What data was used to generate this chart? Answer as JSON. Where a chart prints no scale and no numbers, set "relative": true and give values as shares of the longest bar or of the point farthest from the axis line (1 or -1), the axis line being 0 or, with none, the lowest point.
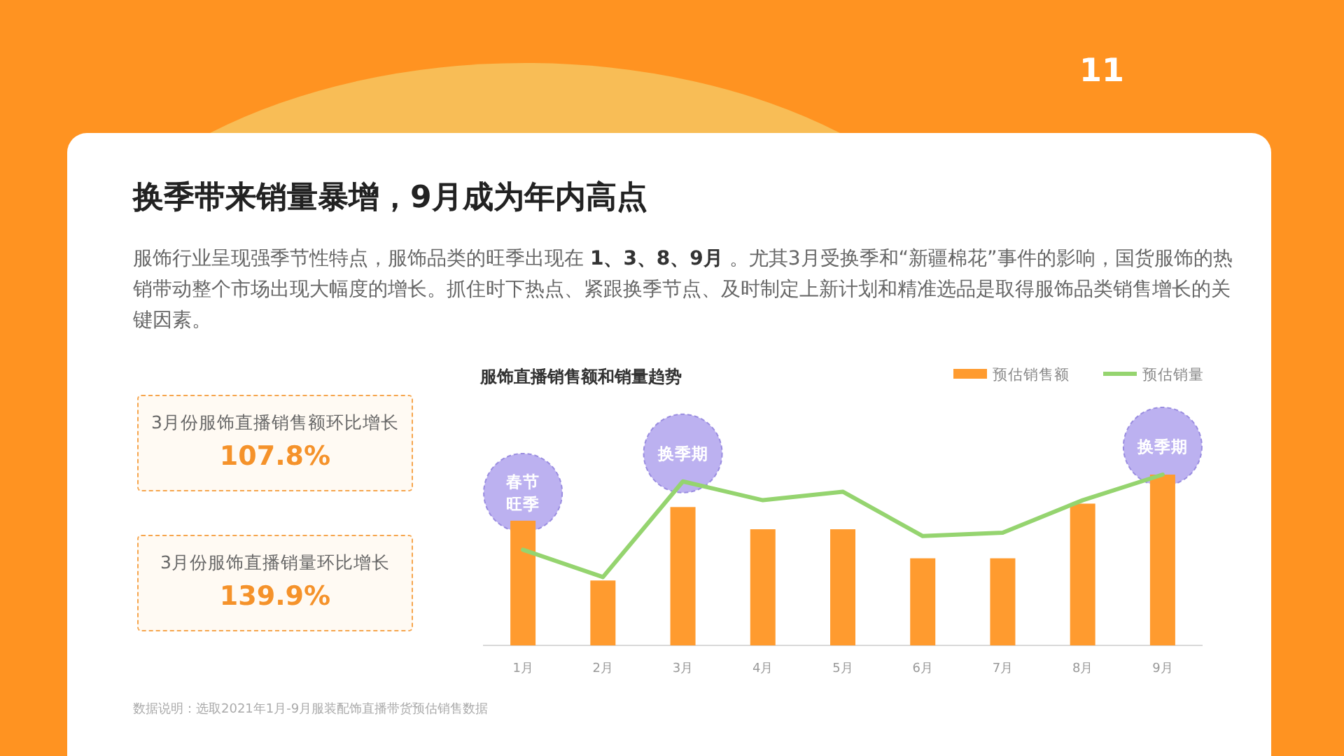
{
  "chart_data": [
    {
      "type": "other",
      "title": "换季带来销量暴增，9月成为年内高点",
      "subtitle": "服饰行业呈现强季节性特点，服饰品类的旺季出现在 **1、3、8、9月** 。尤其3月受换季和“新疆棉花”事件的影响，国货服饰的热销带动整个市场出现大幅度的增长。抓住时下热点、紧跟换季节点、及时制定上新计划和精准选品是取得服饰品类销售增长的关键因素。",
      "annotations": [
        "11",
        "3月份服饰直播销售额环比增长",
        "107.8%",
        "3月份服饰直播销量环比增长",
        "139.9%"
      ]
    },
    {
      "type": "bar",
      "title": "服饰直播销售额和销量趋势",
      "categories": [
        "1月",
        "2月",
        "3月",
        "4月",
        "5月",
        "6月",
        "7月",
        "8月",
        "9月"
      ],
      "relative": true,
      "legend": "top right",
      "series": [
        {
          "name": "预估销售额",
          "color": "#ff9b2f",
          "values": [
            0.73,
            0.38,
            0.81,
            0.68,
            0.68,
            0.51,
            0.51,
            0.83,
            1
          ]
        },
        {
          "name": "预估销量",
          "type": "line",
          "color": "#95d46f",
          "values": [
            0.56,
            0.4,
            0.96,
            0.85,
            0.9,
            0.64,
            0.66,
            0.85,
            1
          ]
        }
      ],
      "annotations": [
        {
          "text": "春节旺季",
          "x": "1月",
          "y": 0.73
        },
        {
          "text": "换季期",
          "x": "3月",
          "y": 0.96
        },
        {
          "text": "换季期",
          "x": "9月",
          "y": 1
        },
        "数据说明：选取2021年1月-9月服装配饰直播带货预估销售数据"
      ]
    }
  ]
}
